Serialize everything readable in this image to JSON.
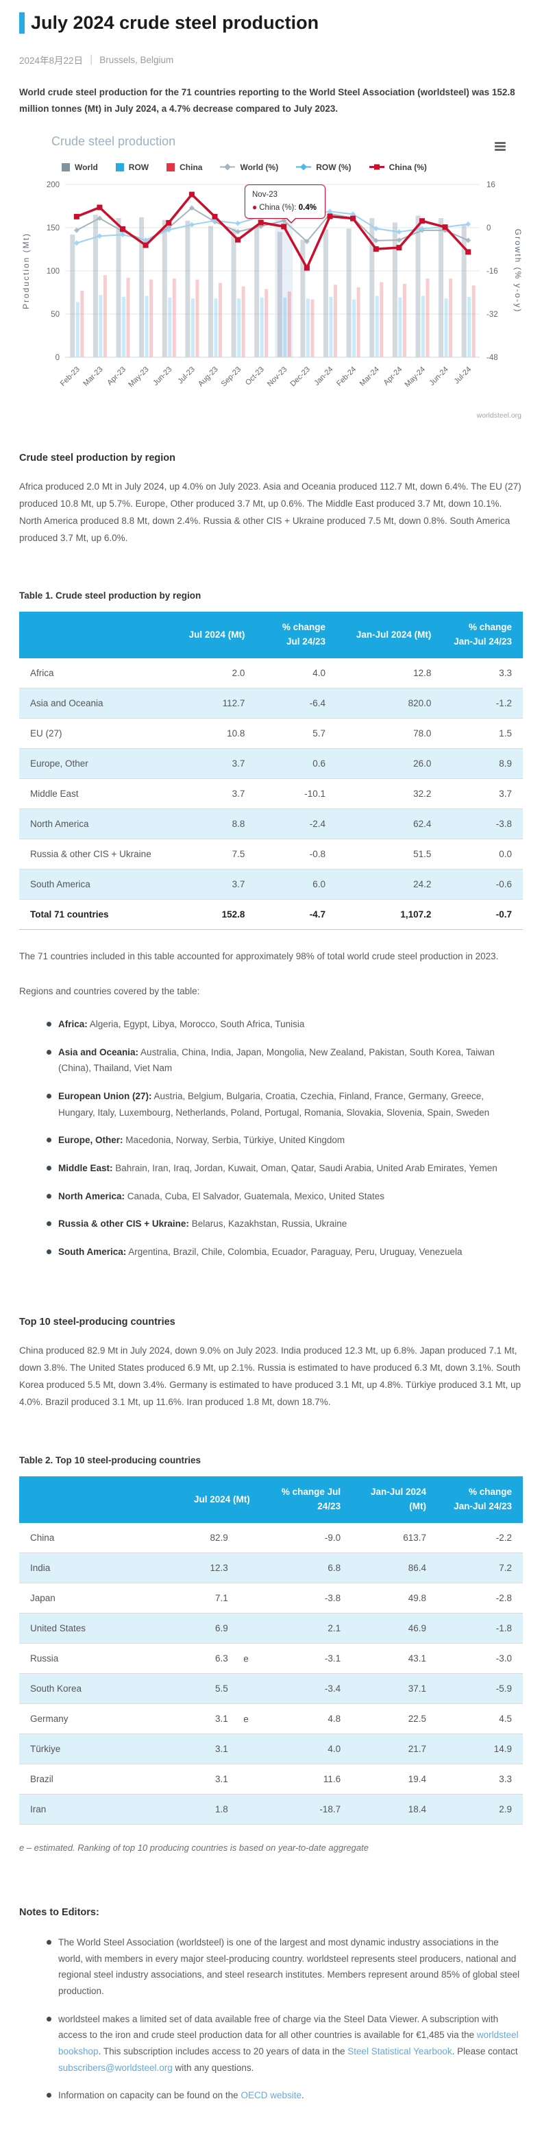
{
  "page": {
    "title": "July 2024 crude steel production",
    "date": "2024年8月22日",
    "location": "Brussels, Belgium",
    "intro": "World crude steel production for the 71 countries reporting to the World Steel Association (worldsteel) was 152.8 million tonnes (Mt) in July 2024, a 4.7% decrease compared to July 2023."
  },
  "colors": {
    "accent_blue": "#29abe2",
    "table_header_blue": "#1ba7e0",
    "row_stripe_blue": "#ddf1fa",
    "china_red": "#c8102e",
    "link_blue": "#64a8dc"
  },
  "chart": {
    "title": "Crude steel production",
    "credit": "worldsteel.org",
    "tooltip": {
      "label": "Nov-23",
      "series": "China (%):",
      "value": "0.4%"
    }
  },
  "chart_data": {
    "type": "bar+line combo",
    "title": "Crude steel production",
    "categories": [
      "Feb-23",
      "Mar-23",
      "Apr-23",
      "May-23",
      "Jun-23",
      "Jul-23",
      "Aug-23",
      "Sep-23",
      "Oct-23",
      "Nov-23",
      "Dec-23",
      "Jan-24",
      "Feb-24",
      "Mar-24",
      "Apr-24",
      "May-24",
      "Jun-24",
      "Jul-24"
    ],
    "left_axis": {
      "label": "Production (Mt)",
      "ticks": [
        0,
        50,
        100,
        150,
        200
      ],
      "range": [
        0,
        200
      ]
    },
    "right_axis": {
      "label": "Growth (% y-o-y)",
      "ticks": [
        16,
        0,
        -16,
        -32,
        -48
      ],
      "range": [
        -48,
        16
      ]
    },
    "bar_series": [
      {
        "name": "World",
        "color": "#7f93a3",
        "opacity": 0.35,
        "values": [
          142,
          165,
          161,
          162,
          159,
          158,
          152,
          149,
          150,
          145,
          136,
          148,
          149,
          161,
          156,
          164,
          161,
          153
        ]
      },
      {
        "name": "ROW",
        "color": "#29abe2",
        "opacity": 0.25,
        "values": [
          64,
          72,
          70,
          71,
          69,
          68,
          68,
          68,
          69,
          69,
          68,
          70,
          67,
          71,
          69,
          71,
          68,
          70
        ]
      },
      {
        "name": "China",
        "color": "#e23645",
        "opacity": 0.25,
        "values": [
          77,
          95,
          92,
          90,
          91,
          90,
          86,
          82,
          79,
          76,
          67,
          84,
          81,
          87,
          85,
          91,
          91,
          83
        ]
      }
    ],
    "line_series": [
      {
        "name": "World (%)",
        "color": "#a6b4bd",
        "width": 2,
        "marker": "diamond",
        "values": [
          -1.0,
          3.5,
          -1.4,
          -4.8,
          0.0,
          7.3,
          2.2,
          -1.5,
          0.5,
          2.6,
          -5.1,
          5.1,
          3.6,
          -4.8,
          -4.6,
          -1.0,
          -1.0,
          -4.7
        ]
      },
      {
        "name": "ROW (%)",
        "color": "#9ad2f2",
        "width": 2,
        "marker": "diamond",
        "values": [
          -5.7,
          -3.1,
          -2.6,
          -4.6,
          -0.8,
          1.1,
          2.6,
          1.6,
          4.1,
          5.2,
          5.0,
          6.0,
          5.0,
          -0.3,
          -1.6,
          -0.3,
          0.2,
          1.3
        ]
      },
      {
        "name": "China (%)",
        "color": "#c8102e",
        "width": 3.5,
        "marker": "square",
        "values": [
          4.1,
          7.5,
          -0.5,
          -6.5,
          1.8,
          12.3,
          4.1,
          -4.5,
          1.9,
          0.4,
          -14.9,
          4.2,
          3.4,
          -7.9,
          -7.4,
          2.5,
          0.2,
          -9.0
        ]
      }
    ],
    "legend": [
      {
        "label": "World",
        "type": "bar",
        "color": "#7f93a3"
      },
      {
        "label": "ROW",
        "type": "bar",
        "color": "#29abe2"
      },
      {
        "label": "China",
        "type": "bar",
        "color": "#e23645"
      },
      {
        "label": "World (%)",
        "type": "line",
        "color": "#a6b4bd",
        "marker": "diamond"
      },
      {
        "label": "ROW (%)",
        "type": "line",
        "color": "#4db8ec",
        "marker": "diamond"
      },
      {
        "label": "China (%)",
        "type": "line",
        "color": "#c8102e",
        "marker": "square"
      }
    ],
    "highlight_category": "Nov-23",
    "tooltip": {
      "category": "Nov-23",
      "series": "China (%)",
      "value": "0.4%"
    },
    "grid": true,
    "legend_position": "top"
  },
  "region_section": {
    "heading": "Crude steel production by region",
    "body": "Africa produced 2.0 Mt in July 2024, up 4.0% on July 2023. Asia and Oceania produced 112.7 Mt, down 6.4%. The EU (27) produced 10.8 Mt, up 5.7%. Europe, Other produced 3.7 Mt, up 0.6%. The Middle East produced 3.7 Mt, down 10.1%. North America produced 8.8 Mt, down 2.4%. Russia & other CIS + Ukraine produced 7.5 Mt, down 0.8%. South America produced 3.7 Mt, up 6.0%."
  },
  "table1": {
    "caption": "Table 1. Crude steel production by region",
    "columns": [
      "",
      "Jul 2024 (Mt)",
      "% change Jul 24/23",
      "Jan-Jul 2024 (Mt)",
      "% change Jan-Jul 24/23"
    ],
    "rows": [
      [
        "Africa",
        "2.0",
        "4.0",
        "12.8",
        "3.3"
      ],
      [
        "Asia and Oceania",
        "112.7",
        "-6.4",
        "820.0",
        "-1.2"
      ],
      [
        "EU (27)",
        "10.8",
        "5.7",
        "78.0",
        "1.5"
      ],
      [
        "Europe, Other",
        "3.7",
        "0.6",
        "26.0",
        "8.9"
      ],
      [
        "Middle East",
        "3.7",
        "-10.1",
        "32.2",
        "3.7"
      ],
      [
        "North America",
        "8.8",
        "-2.4",
        "62.4",
        "-3.8"
      ],
      [
        "Russia & other CIS + Ukraine",
        "7.5",
        "-0.8",
        "51.5",
        "0.0"
      ],
      [
        "South America",
        "3.7",
        "6.0",
        "24.2",
        "-0.6"
      ]
    ],
    "total_row": [
      "Total 71 countries",
      "152.8",
      "-4.7",
      "1,107.2",
      "-0.7"
    ],
    "footnote": "The 71 countries included in this table accounted for approximately 98% of total world crude steel production in 2023.",
    "regions_intro": "Regions and countries covered by the table:",
    "regions": [
      {
        "name": "Africa:",
        "countries": "Algeria, Egypt, Libya, Morocco, South Africa, Tunisia"
      },
      {
        "name": "Asia and Oceania:",
        "countries": "Australia, China, India, Japan, Mongolia, New Zealand, Pakistan, South Korea, Taiwan (China), Thailand, Viet Nam"
      },
      {
        "name": "European Union (27):",
        "countries": "Austria, Belgium, Bulgaria, Croatia, Czechia, Finland, France, Germany, Greece, Hungary, Italy, Luxembourg, Netherlands, Poland, Portugal, Romania, Slovakia, Slovenia, Spain, Sweden"
      },
      {
        "name": "Europe, Other:",
        "countries": "Macedonia, Norway, Serbia, Türkiye, United Kingdom"
      },
      {
        "name": "Middle East:",
        "countries": "Bahrain, Iran, Iraq, Jordan, Kuwait, Oman, Qatar, Saudi Arabia, United Arab Emirates, Yemen"
      },
      {
        "name": "North America:",
        "countries": "Canada, Cuba, El Salvador, Guatemala, Mexico, United States"
      },
      {
        "name": "Russia & other CIS + Ukraine:",
        "countries": "Belarus, Kazakhstan, Russia, Ukraine"
      },
      {
        "name": "South America:",
        "countries": "Argentina, Brazil, Chile, Colombia, Ecuador, Paraguay, Peru, Uruguay, Venezuela"
      }
    ]
  },
  "top10_section": {
    "heading": "Top 10 steel-producing countries",
    "body": "China produced 82.9 Mt in July 2024, down 9.0% on July 2023. India produced 12.3 Mt, up 6.8%. Japan produced 7.1 Mt, down 3.8%. The United States produced 6.9 Mt, up 2.1%. Russia is estimated to have produced 6.3 Mt, down 3.1%. South Korea produced 5.5 Mt, down 3.4%. Germany is estimated to have produced 3.1 Mt, up 4.8%. Türkiye produced 3.1 Mt, up 4.0%. Brazil produced 3.1 Mt, up 11.6%. Iran produced 1.8 Mt, down 18.7%."
  },
  "table2": {
    "caption": "Table 2. Top 10 steel-producing countries",
    "columns": [
      "",
      "Jul 2024 (Mt)",
      "% change Jul 24/23",
      "Jan-Jul 2024 (Mt)",
      "% change Jan-Jul 24/23"
    ],
    "rows": [
      [
        "China",
        "82.9",
        "",
        "-9.0",
        "613.7",
        "-2.2"
      ],
      [
        "India",
        "12.3",
        "",
        "6.8",
        "86.4",
        "7.2"
      ],
      [
        "Japan",
        "7.1",
        "",
        "-3.8",
        "49.8",
        "-2.8"
      ],
      [
        "United States",
        "6.9",
        "",
        "2.1",
        "46.9",
        "-1.8"
      ],
      [
        "Russia",
        "6.3",
        "e",
        "-3.1",
        "43.1",
        "-3.0"
      ],
      [
        "South Korea",
        "5.5",
        "",
        "-3.4",
        "37.1",
        "-5.9"
      ],
      [
        "Germany",
        "3.1",
        "e",
        "4.8",
        "22.5",
        "4.5"
      ],
      [
        "Türkiye",
        "3.1",
        "",
        "4.0",
        "21.7",
        "14.9"
      ],
      [
        "Brazil",
        "3.1",
        "",
        "11.6",
        "19.4",
        "3.3"
      ],
      [
        "Iran",
        "1.8",
        "",
        "-18.7",
        "18.4",
        "2.9"
      ]
    ],
    "footnote": "e – estimated. Ranking of top 10 producing countries is based on year-to-date aggregate"
  },
  "notes": {
    "heading": "Notes to Editors:",
    "items": [
      {
        "parts": [
          {
            "text": "The World Steel Association (worldsteel) is one of the largest and most dynamic industry associations in the world, with members in every major steel-producing country. worldsteel represents steel producers, national and regional steel industry associations, and steel research institutes. Members represent around 85% of global steel production."
          }
        ]
      },
      {
        "parts": [
          {
            "text": "worldsteel makes a limited set of data available free of charge via the Steel Data Viewer. A subscription with access to the iron and crude steel production data for all other countries is available for €1,485  via the "
          },
          {
            "text": "worldsteel bookshop",
            "link": true
          },
          {
            "text": ". This subscription includes access to 20 years of data in the "
          },
          {
            "text": "Steel Statistical Yearbook",
            "link": true
          },
          {
            "text": ". Please contact "
          },
          {
            "text": "subscribers@worldsteel.org",
            "link": true
          },
          {
            "text": " with any questions."
          }
        ]
      },
      {
        "parts": [
          {
            "text": "Information on capacity can be found on the "
          },
          {
            "text": "OECD website",
            "link": true
          },
          {
            "text": "."
          }
        ]
      }
    ]
  }
}
